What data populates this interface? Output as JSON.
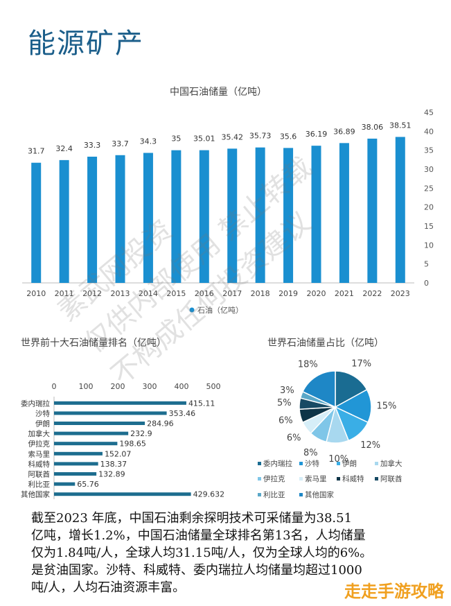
{
  "page": {
    "title": "能源矿产"
  },
  "chart_data": [
    {
      "type": "bar",
      "title": "中国石油储量（亿吨）",
      "categories": [
        "2010",
        "2011",
        "2012",
        "2013",
        "2014",
        "2015",
        "2016",
        "2017",
        "2018",
        "2019",
        "2020",
        "2021",
        "2022",
        "2023"
      ],
      "series": [
        {
          "name": "石油（亿吨）",
          "values": [
            31.7,
            32.4,
            33.3,
            33.7,
            34.3,
            35,
            35.01,
            35.42,
            35.73,
            35.6,
            36.19,
            36.89,
            38.06,
            38.51
          ]
        }
      ],
      "data_labels": [
        "31.7",
        "32.4",
        "33.3",
        "33.7",
        "34.3",
        "35",
        "35.01",
        "35.42",
        "35.73",
        "35.6",
        "36.19",
        "36.89",
        "38.06",
        "38.51"
      ],
      "ylim": [
        0,
        45
      ],
      "yticks": [
        "0",
        "5",
        "10",
        "15",
        "20",
        "25",
        "30",
        "35",
        "40",
        "45"
      ],
      "color": "#1a8fd0",
      "legend": "bottom-center"
    },
    {
      "type": "bar",
      "orientation": "horizontal",
      "title": "世界前十大石油储量排名（亿吨）",
      "categories": [
        "委内瑞拉",
        "沙特",
        "伊朗",
        "加拿大",
        "伊拉克",
        "索马里",
        "科威特",
        "阿联酋",
        "利比亚",
        "其他国家"
      ],
      "values": [
        415.11,
        353.46,
        284.96,
        232.9,
        198.65,
        152.07,
        138.37,
        132.89,
        65.76,
        429.632
      ],
      "data_labels": [
        "415.11",
        "353.46",
        "284.96",
        "232.9",
        "198.65",
        "152.07",
        "138.37",
        "132.89",
        "65.76",
        "429.632"
      ],
      "xlim": [
        0,
        500
      ],
      "xticks": [
        "0",
        "100",
        "200",
        "300",
        "400",
        "500"
      ],
      "color": "#1d6d8f"
    },
    {
      "type": "pie",
      "title": "世界石油储量占比（亿吨）",
      "labels": [
        "委内瑞拉",
        "沙特",
        "伊朗",
        "加拿大",
        "伊拉克",
        "索马里",
        "科威特",
        "阿联酋",
        "利比亚",
        "其他国家"
      ],
      "values": [
        17,
        15,
        12,
        10,
        8,
        6,
        6,
        5,
        3,
        18
      ],
      "value_labels": [
        "17%",
        "15%",
        "12%",
        "10%",
        "8%",
        "6%",
        "6%",
        "5%",
        "3%",
        "18%"
      ],
      "colors": [
        "#1a6c92",
        "#2196d6",
        "#3aaee6",
        "#a8d8ef",
        "#7fc6e8",
        "#d6eef8",
        "#0e3447",
        "#174a64",
        "#5aa7c8",
        "#1e87c6"
      ],
      "legend": "bottom"
    }
  ],
  "paragraph": {
    "lines": [
      "截至2023 年底，中国石油剩余探明技术可采储量为38.51",
      "亿吨，增长1.2%，中国石油储量全球排名第13名，人均储量",
      "仅为1.84吨/人，全球人均31.15吨/人，仅为全球人均的6%。",
      "是贫油国家。沙特、科威特、委内瑞拉人均储量均超过1000",
      "吨/人，人均石油资源丰富。"
    ]
  },
  "watermark": {
    "lines": [
      "素武网投资",
      "仅供内部使用 禁止转载",
      "不构成任何投资建议"
    ]
  },
  "corner_logo": "走走手游攻略"
}
